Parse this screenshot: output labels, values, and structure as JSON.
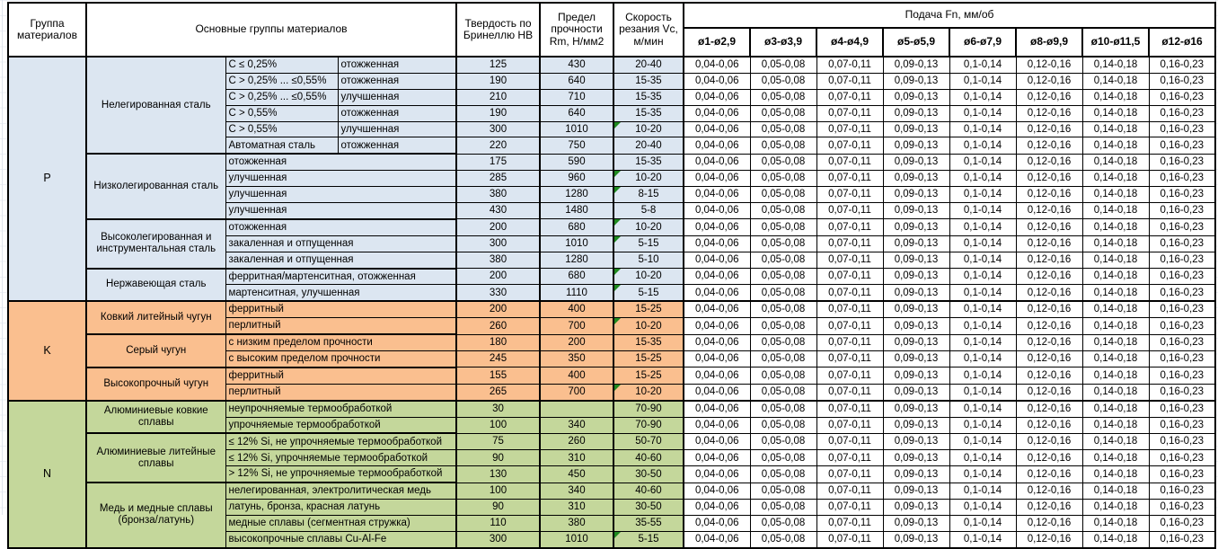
{
  "header": {
    "col_group": "Группа материалов",
    "col_main_groups": "Основные группы материалов",
    "col_hardness": "Твердость по Бринеллю HB",
    "col_strength": "Предел прочности Rm, Н/мм2",
    "col_speed": "Скорость резания Vc, м/мин",
    "feed_title": "Подача Fn, мм/об",
    "feed_cols": [
      "ø1-ø2,9",
      "ø3-ø3,9",
      "ø4-ø4,9",
      "ø5-ø5,9",
      "ø6-ø7,9",
      "ø8-ø9,9",
      "ø10-ø11,5",
      "ø12-ø16"
    ]
  },
  "feed_values": [
    "0,04-0,06",
    "0,05-0,08",
    "0,07-0,11",
    "0,09-0,13",
    "0,1-0,14",
    "0,12-0,16",
    "0,14-0,18",
    "0,16-0,23"
  ],
  "icons": {
    "error_indicator": "green-corner-triangle"
  },
  "colors": {
    "steel_blue": "#dce6f1",
    "cast_iron_orange": "#fabf8f",
    "nonferrous_green": "#c4d79b",
    "flag_green": "#1f8a1f",
    "border_black": "#000000"
  },
  "groups": [
    {
      "letter": "P",
      "color": "#dce6f1",
      "subgroups": [
        {
          "name": "Нелегированная сталь",
          "rows": [
            {
              "spec": "C ≤ 0,25%",
              "state": "отожженная",
              "hb": "125",
              "rm": "430",
              "vc": "20-40",
              "flag": false
            },
            {
              "spec": "C > 0,25% ... ≤0,55%",
              "state": "отожженная",
              "hb": "190",
              "rm": "640",
              "vc": "15-35",
              "flag": false
            },
            {
              "spec": "C > 0,25% ... ≤0,55%",
              "state": "улучшенная",
              "hb": "210",
              "rm": "710",
              "vc": "15-35",
              "flag": false
            },
            {
              "spec": "C > 0,55%",
              "state": "отожженная",
              "hb": "190",
              "rm": "640",
              "vc": "15-35",
              "flag": false
            },
            {
              "spec": "C > 0,55%",
              "state": "улучшенная",
              "hb": "300",
              "rm": "1010",
              "vc": "10-20",
              "flag": true
            },
            {
              "spec": "Автоматная сталь",
              "state": "отожженная",
              "hb": "220",
              "rm": "750",
              "vc": "20-40",
              "flag": false
            }
          ]
        },
        {
          "name": "Низколегированная сталь",
          "rows": [
            {
              "desc": "отожженная",
              "hb": "175",
              "rm": "590",
              "vc": "15-35",
              "flag": false
            },
            {
              "desc": "улучшенная",
              "hb": "285",
              "rm": "960",
              "vc": "10-20",
              "flag": true
            },
            {
              "desc": "улучшенная",
              "hb": "380",
              "rm": "1280",
              "vc": "8-15",
              "flag": true
            },
            {
              "desc": "улучшенная",
              "hb": "430",
              "rm": "1480",
              "vc": "5-8",
              "flag": false
            }
          ]
        },
        {
          "name": "Высоколегированная и инструментальная сталь",
          "rows": [
            {
              "desc": "отожженная",
              "hb": "200",
              "rm": "680",
              "vc": "10-20",
              "flag": true
            },
            {
              "desc": "закаленная и отпущенная",
              "hb": "300",
              "rm": "1010",
              "vc": "5-15",
              "flag": true
            },
            {
              "desc": "закаленная и отпущенная",
              "hb": "380",
              "rm": "1280",
              "vc": "5-10",
              "flag": false
            }
          ]
        },
        {
          "name": "Нержавеющая сталь",
          "rows": [
            {
              "desc": "ферритная/мартенситная, отожженная",
              "hb": "200",
              "rm": "680",
              "vc": "10-20",
              "flag": true
            },
            {
              "desc": "мартенситная, улучшенная",
              "hb": "330",
              "rm": "1110",
              "vc": "5-15",
              "flag": true
            }
          ]
        }
      ]
    },
    {
      "letter": "K",
      "color": "#fabf8f",
      "subgroups": [
        {
          "name": "Ковкий литейный чугун",
          "rows": [
            {
              "desc": "ферритный",
              "hb": "200",
              "rm": "400",
              "vc": "15-25",
              "flag": false
            },
            {
              "desc": "перлитный",
              "hb": "260",
              "rm": "700",
              "vc": "10-20",
              "flag": true
            }
          ]
        },
        {
          "name": "Серый чугун",
          "rows": [
            {
              "desc": "с низким пределом прочности",
              "hb": "180",
              "rm": "200",
              "vc": "15-35",
              "flag": false
            },
            {
              "desc": "с высоким пределом прочности",
              "hb": "245",
              "rm": "350",
              "vc": "15-25",
              "flag": false
            }
          ]
        },
        {
          "name": "Высокопрочный чугун",
          "rows": [
            {
              "desc": "ферритный",
              "hb": "155",
              "rm": "400",
              "vc": "15-25",
              "flag": false
            },
            {
              "desc": "перлитный",
              "hb": "265",
              "rm": "700",
              "vc": "10-20",
              "flag": true
            }
          ]
        }
      ]
    },
    {
      "letter": "N",
      "color": "#c4d79b",
      "subgroups": [
        {
          "name": "Алюминиевые ковкие сплавы",
          "rows": [
            {
              "desc": "неупрочняемые термообработкой",
              "hb": "30",
              "rm": "",
              "vc": "70-90",
              "flag": false
            },
            {
              "desc": "упрочняемые термообработкой",
              "hb": "100",
              "rm": "340",
              "vc": "70-90",
              "flag": false
            }
          ]
        },
        {
          "name": "Алюминиевые литейные сплавы",
          "rows": [
            {
              "desc": "≤ 12% Si, не упрочняемые термообработкой",
              "hb": "75",
              "rm": "260",
              "vc": "50-70",
              "flag": false
            },
            {
              "desc": "≤ 12% Si, упрочняемые термообработкой",
              "hb": "90",
              "rm": "310",
              "vc": "40-60",
              "flag": false
            },
            {
              "desc": "> 12% Si, не упрочняемые термообработкой",
              "hb": "130",
              "rm": "450",
              "vc": "30-50",
              "flag": false
            }
          ]
        },
        {
          "name": "Медь и медные сплавы (бронза/латунь)",
          "rows": [
            {
              "desc": "нелегированная, электролитическая медь",
              "hb": "100",
              "rm": "340",
              "vc": "40-60",
              "flag": false
            },
            {
              "desc": "латунь, бронза, красная латунь",
              "hb": "90",
              "rm": "310",
              "vc": "30-50",
              "flag": false
            },
            {
              "desc": "медные сплавы (сегментная стружка)",
              "hb": "110",
              "rm": "380",
              "vc": "35-55",
              "flag": false
            },
            {
              "desc": "высокопрочные сплавы Cu-Al-Fe",
              "hb": "300",
              "rm": "1010",
              "vc": "5-15",
              "flag": true
            }
          ]
        }
      ]
    }
  ]
}
